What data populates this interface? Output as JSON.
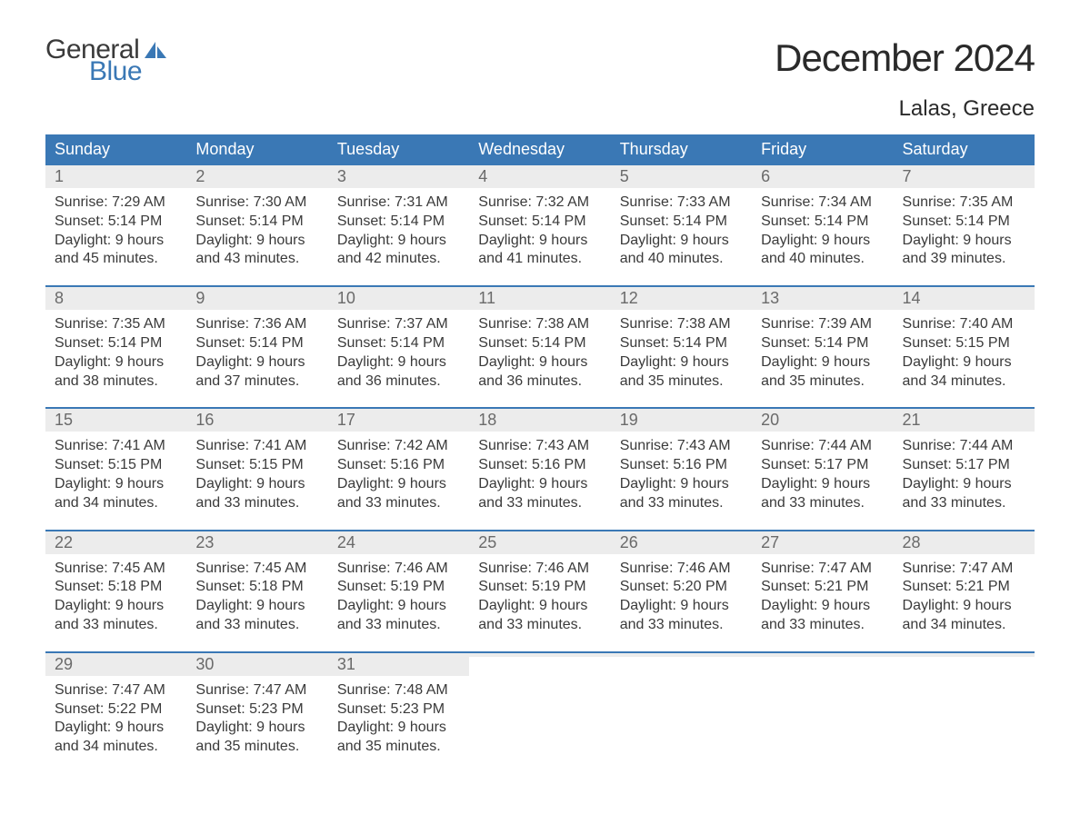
{
  "logo": {
    "word1": "General",
    "word2": "Blue"
  },
  "colors": {
    "brand_blue": "#3a78b5",
    "header_text": "#ffffff",
    "daynum_bg": "#ececec",
    "daynum_text": "#6a6a6a",
    "body_text": "#3a3a3a",
    "title_text": "#2a2a2a",
    "background": "#ffffff"
  },
  "title": "December 2024",
  "location": "Lalas, Greece",
  "weekdays": [
    "Sunday",
    "Monday",
    "Tuesday",
    "Wednesday",
    "Thursday",
    "Friday",
    "Saturday"
  ],
  "weeks": [
    [
      {
        "n": "1",
        "sunrise": "Sunrise: 7:29 AM",
        "sunset": "Sunset: 5:14 PM",
        "d1": "Daylight: 9 hours",
        "d2": "and 45 minutes."
      },
      {
        "n": "2",
        "sunrise": "Sunrise: 7:30 AM",
        "sunset": "Sunset: 5:14 PM",
        "d1": "Daylight: 9 hours",
        "d2": "and 43 minutes."
      },
      {
        "n": "3",
        "sunrise": "Sunrise: 7:31 AM",
        "sunset": "Sunset: 5:14 PM",
        "d1": "Daylight: 9 hours",
        "d2": "and 42 minutes."
      },
      {
        "n": "4",
        "sunrise": "Sunrise: 7:32 AM",
        "sunset": "Sunset: 5:14 PM",
        "d1": "Daylight: 9 hours",
        "d2": "and 41 minutes."
      },
      {
        "n": "5",
        "sunrise": "Sunrise: 7:33 AM",
        "sunset": "Sunset: 5:14 PM",
        "d1": "Daylight: 9 hours",
        "d2": "and 40 minutes."
      },
      {
        "n": "6",
        "sunrise": "Sunrise: 7:34 AM",
        "sunset": "Sunset: 5:14 PM",
        "d1": "Daylight: 9 hours",
        "d2": "and 40 minutes."
      },
      {
        "n": "7",
        "sunrise": "Sunrise: 7:35 AM",
        "sunset": "Sunset: 5:14 PM",
        "d1": "Daylight: 9 hours",
        "d2": "and 39 minutes."
      }
    ],
    [
      {
        "n": "8",
        "sunrise": "Sunrise: 7:35 AM",
        "sunset": "Sunset: 5:14 PM",
        "d1": "Daylight: 9 hours",
        "d2": "and 38 minutes."
      },
      {
        "n": "9",
        "sunrise": "Sunrise: 7:36 AM",
        "sunset": "Sunset: 5:14 PM",
        "d1": "Daylight: 9 hours",
        "d2": "and 37 minutes."
      },
      {
        "n": "10",
        "sunrise": "Sunrise: 7:37 AM",
        "sunset": "Sunset: 5:14 PM",
        "d1": "Daylight: 9 hours",
        "d2": "and 36 minutes."
      },
      {
        "n": "11",
        "sunrise": "Sunrise: 7:38 AM",
        "sunset": "Sunset: 5:14 PM",
        "d1": "Daylight: 9 hours",
        "d2": "and 36 minutes."
      },
      {
        "n": "12",
        "sunrise": "Sunrise: 7:38 AM",
        "sunset": "Sunset: 5:14 PM",
        "d1": "Daylight: 9 hours",
        "d2": "and 35 minutes."
      },
      {
        "n": "13",
        "sunrise": "Sunrise: 7:39 AM",
        "sunset": "Sunset: 5:14 PM",
        "d1": "Daylight: 9 hours",
        "d2": "and 35 minutes."
      },
      {
        "n": "14",
        "sunrise": "Sunrise: 7:40 AM",
        "sunset": "Sunset: 5:15 PM",
        "d1": "Daylight: 9 hours",
        "d2": "and 34 minutes."
      }
    ],
    [
      {
        "n": "15",
        "sunrise": "Sunrise: 7:41 AM",
        "sunset": "Sunset: 5:15 PM",
        "d1": "Daylight: 9 hours",
        "d2": "and 34 minutes."
      },
      {
        "n": "16",
        "sunrise": "Sunrise: 7:41 AM",
        "sunset": "Sunset: 5:15 PM",
        "d1": "Daylight: 9 hours",
        "d2": "and 33 minutes."
      },
      {
        "n": "17",
        "sunrise": "Sunrise: 7:42 AM",
        "sunset": "Sunset: 5:16 PM",
        "d1": "Daylight: 9 hours",
        "d2": "and 33 minutes."
      },
      {
        "n": "18",
        "sunrise": "Sunrise: 7:43 AM",
        "sunset": "Sunset: 5:16 PM",
        "d1": "Daylight: 9 hours",
        "d2": "and 33 minutes."
      },
      {
        "n": "19",
        "sunrise": "Sunrise: 7:43 AM",
        "sunset": "Sunset: 5:16 PM",
        "d1": "Daylight: 9 hours",
        "d2": "and 33 minutes."
      },
      {
        "n": "20",
        "sunrise": "Sunrise: 7:44 AM",
        "sunset": "Sunset: 5:17 PM",
        "d1": "Daylight: 9 hours",
        "d2": "and 33 minutes."
      },
      {
        "n": "21",
        "sunrise": "Sunrise: 7:44 AM",
        "sunset": "Sunset: 5:17 PM",
        "d1": "Daylight: 9 hours",
        "d2": "and 33 minutes."
      }
    ],
    [
      {
        "n": "22",
        "sunrise": "Sunrise: 7:45 AM",
        "sunset": "Sunset: 5:18 PM",
        "d1": "Daylight: 9 hours",
        "d2": "and 33 minutes."
      },
      {
        "n": "23",
        "sunrise": "Sunrise: 7:45 AM",
        "sunset": "Sunset: 5:18 PM",
        "d1": "Daylight: 9 hours",
        "d2": "and 33 minutes."
      },
      {
        "n": "24",
        "sunrise": "Sunrise: 7:46 AM",
        "sunset": "Sunset: 5:19 PM",
        "d1": "Daylight: 9 hours",
        "d2": "and 33 minutes."
      },
      {
        "n": "25",
        "sunrise": "Sunrise: 7:46 AM",
        "sunset": "Sunset: 5:19 PM",
        "d1": "Daylight: 9 hours",
        "d2": "and 33 minutes."
      },
      {
        "n": "26",
        "sunrise": "Sunrise: 7:46 AM",
        "sunset": "Sunset: 5:20 PM",
        "d1": "Daylight: 9 hours",
        "d2": "and 33 minutes."
      },
      {
        "n": "27",
        "sunrise": "Sunrise: 7:47 AM",
        "sunset": "Sunset: 5:21 PM",
        "d1": "Daylight: 9 hours",
        "d2": "and 33 minutes."
      },
      {
        "n": "28",
        "sunrise": "Sunrise: 7:47 AM",
        "sunset": "Sunset: 5:21 PM",
        "d1": "Daylight: 9 hours",
        "d2": "and 34 minutes."
      }
    ],
    [
      {
        "n": "29",
        "sunrise": "Sunrise: 7:47 AM",
        "sunset": "Sunset: 5:22 PM",
        "d1": "Daylight: 9 hours",
        "d2": "and 34 minutes."
      },
      {
        "n": "30",
        "sunrise": "Sunrise: 7:47 AM",
        "sunset": "Sunset: 5:23 PM",
        "d1": "Daylight: 9 hours",
        "d2": "and 35 minutes."
      },
      {
        "n": "31",
        "sunrise": "Sunrise: 7:48 AM",
        "sunset": "Sunset: 5:23 PM",
        "d1": "Daylight: 9 hours",
        "d2": "and 35 minutes."
      },
      {
        "empty": true
      },
      {
        "empty": true
      },
      {
        "empty": true
      },
      {
        "empty": true
      }
    ]
  ]
}
